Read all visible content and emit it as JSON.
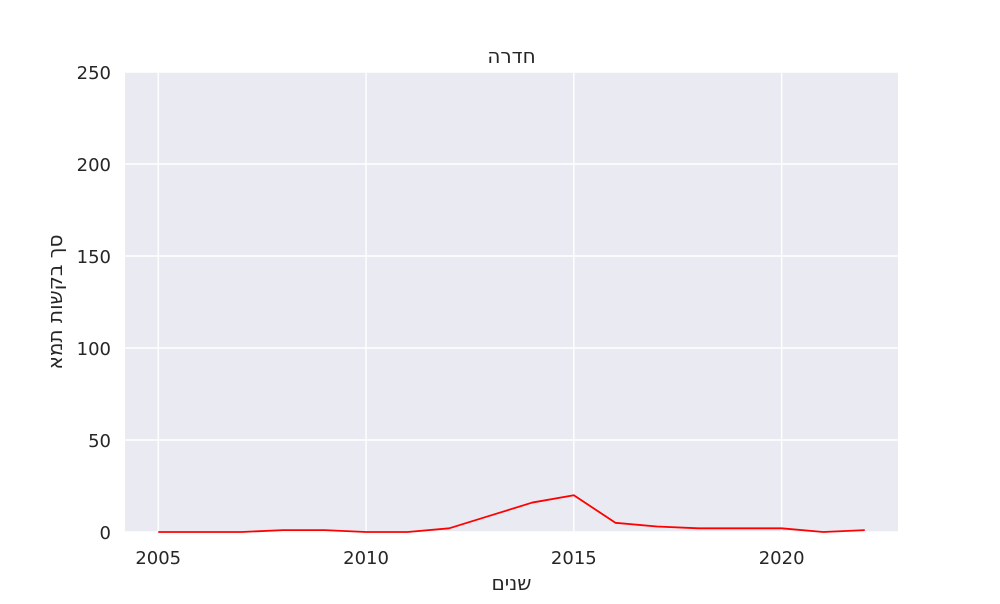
{
  "chart_data": {
    "type": "line",
    "title": "חדרה",
    "xlabel": "שנים",
    "ylabel": "סך בקשות תמא",
    "xlim": [
      2004.2,
      2022.8
    ],
    "ylim": [
      0,
      250
    ],
    "x_ticks": [
      2005,
      2010,
      2015,
      2020
    ],
    "y_ticks": [
      0,
      50,
      100,
      150,
      200,
      250
    ],
    "grid": true,
    "colors": {
      "background": "#eaeaf2",
      "grid": "#ffffff",
      "line": "#ff0000"
    },
    "series": [
      {
        "x": [
          2005,
          2006,
          2007,
          2008,
          2009,
          2010,
          2011,
          2012,
          2013,
          2014,
          2015,
          2016,
          2017,
          2018,
          2019,
          2020,
          2021,
          2022
        ],
        "values": [
          0,
          0,
          0,
          1,
          1,
          0,
          0,
          2,
          9,
          16,
          20,
          5,
          3,
          2,
          2,
          2,
          0,
          1
        ]
      }
    ]
  }
}
